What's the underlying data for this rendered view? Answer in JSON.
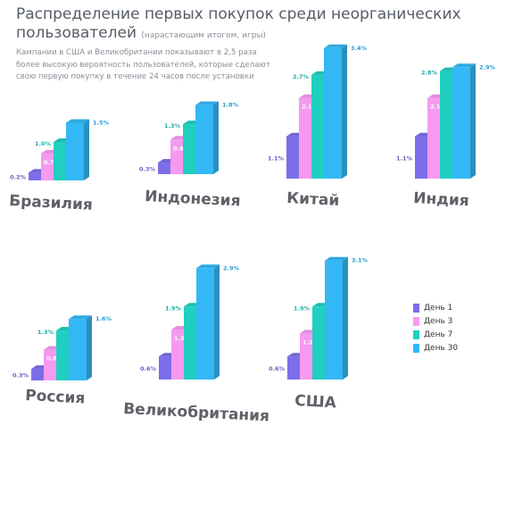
{
  "header": {
    "title": "Распределение первых покупок среди неорганических пользователей",
    "title_note": "(нарастающим итогом, игры)",
    "description": "Кампании в США и Великобритании показывают в 2,5 раза более высокую вероятность пользователей, которые сделают свою первую покупку в течение 24 часов после установки"
  },
  "colors": {
    "day1": "#7b6ee8",
    "day3": "#f59af0",
    "day7": "#1fcfc0",
    "day30": "#34b8f5",
    "country_label": "#5e6168"
  },
  "chart_data": {
    "type": "bar",
    "title": "Распределение первых покупок среди неорганических пользователей",
    "series": [
      {
        "name": "День 1",
        "key": "day1"
      },
      {
        "name": "День 3",
        "key": "day3"
      },
      {
        "name": "День 7",
        "key": "day7"
      },
      {
        "name": "День 30",
        "key": "day30"
      }
    ],
    "groups": [
      {
        "country": "Бразилия",
        "values": [
          0.2,
          0.7,
          1.0,
          1.5
        ],
        "labels": [
          "0.2%",
          "0.7%",
          "1.0%",
          "1.5%"
        ]
      },
      {
        "country": "Индонезия",
        "values": [
          0.3,
          0.9,
          1.3,
          1.8
        ],
        "labels": [
          "0.3%",
          "0.9%",
          "1.3%",
          "1.8%"
        ]
      },
      {
        "country": "Китай",
        "values": [
          1.1,
          2.1,
          2.7,
          3.4
        ],
        "labels": [
          "1.1%",
          "2.1%",
          "2.7%",
          "3.4%"
        ]
      },
      {
        "country": "Индия",
        "values": [
          1.1,
          2.1,
          2.8,
          2.9
        ],
        "labels": [
          "1.1%",
          "2.1%",
          "2.8%",
          "2.9%"
        ]
      },
      {
        "country": "Россия",
        "values": [
          0.3,
          0.8,
          1.3,
          1.6
        ],
        "labels": [
          "0.3%",
          "0.8%",
          "1.3%",
          "1.6%"
        ]
      },
      {
        "country": "Великобритания",
        "values": [
          0.6,
          1.3,
          1.9,
          2.9
        ],
        "labels": [
          "0.6%",
          "1.3%",
          "1.9%",
          "2.9%"
        ]
      },
      {
        "country": "США",
        "values": [
          0.6,
          1.2,
          1.9,
          3.1
        ],
        "labels": [
          "0.6%",
          "1.2%",
          "1.9%",
          "3.1%"
        ]
      }
    ],
    "legend_position": "right",
    "grid": false
  }
}
